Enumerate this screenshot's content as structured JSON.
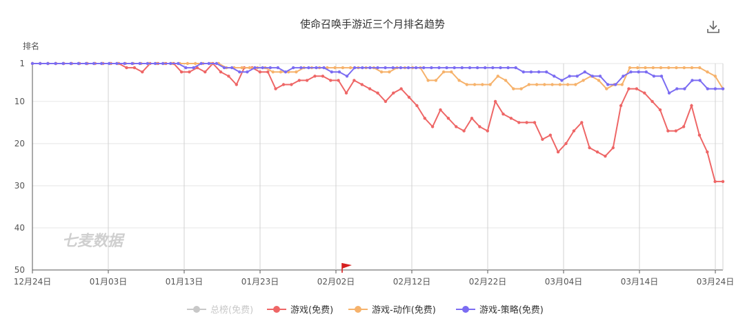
{
  "chart_data": {
    "type": "line",
    "title": "使命召唤手游近三个月排名趋势",
    "ylabel": "排名",
    "y_inverted": true,
    "ylim": [
      1,
      50
    ],
    "y_ticks": [
      1,
      10,
      20,
      30,
      40,
      50
    ],
    "x_tick_labels": [
      "12月24日",
      "01月03日",
      "01月13日",
      "01月23日",
      "02月02日",
      "02月12日",
      "02月22日",
      "03月04日",
      "03月14日",
      "03月24日"
    ],
    "watermark": "七麦数据",
    "legend_position": "bottom",
    "series": [
      {
        "name": "总榜(免费)",
        "color": "#c8c8c8",
        "disabled": true,
        "values": []
      },
      {
        "name": "游戏(免费)",
        "color": "#ee6666",
        "values": [
          1,
          1,
          1,
          1,
          1,
          1,
          1,
          1,
          1,
          1,
          1,
          1,
          2,
          2,
          3,
          1,
          1,
          1,
          1,
          3,
          3,
          2,
          3,
          1,
          3,
          4,
          6,
          2,
          2,
          3,
          3,
          7,
          6,
          6,
          5,
          5,
          4,
          4,
          5,
          5,
          8,
          5,
          6,
          7,
          8,
          10,
          8,
          7,
          9,
          11,
          14,
          16,
          12,
          14,
          16,
          17,
          14,
          16,
          17,
          10,
          13,
          14,
          15,
          15,
          15,
          19,
          18,
          22,
          20,
          17,
          15,
          21,
          22,
          23,
          21,
          11,
          7,
          7,
          8,
          10,
          12,
          17,
          17,
          16,
          11,
          18,
          22,
          29,
          29
        ]
      },
      {
        "name": "游戏-动作(免费)",
        "color": "#f6b26b",
        "values": [
          1,
          1,
          1,
          1,
          1,
          1,
          1,
          1,
          1,
          1,
          1,
          1,
          1,
          1,
          1,
          1,
          1,
          1,
          1,
          1,
          1,
          1,
          1,
          1,
          1,
          2,
          2,
          2,
          2,
          2,
          2,
          3,
          3,
          3,
          3,
          2,
          2,
          2,
          2,
          2,
          2,
          2,
          2,
          2,
          2,
          3,
          3,
          2,
          2,
          2,
          2,
          5,
          5,
          3,
          3,
          5,
          6,
          6,
          6,
          6,
          4,
          5,
          7,
          7,
          6,
          6,
          6,
          6,
          6,
          6,
          6,
          5,
          4,
          5,
          7,
          6,
          6,
          2,
          2,
          2,
          2,
          2,
          2,
          2,
          2,
          2,
          2,
          3,
          4,
          7
        ]
      },
      {
        "name": "游戏-策略(免费)",
        "color": "#7b6cf2",
        "values": [
          1,
          1,
          1,
          1,
          1,
          1,
          1,
          1,
          1,
          1,
          1,
          1,
          1,
          1,
          1,
          1,
          1,
          1,
          1,
          1,
          2,
          2,
          1,
          1,
          1,
          2,
          2,
          3,
          3,
          2,
          2,
          2,
          2,
          3,
          2,
          2,
          2,
          2,
          2,
          3,
          3,
          4,
          2,
          2,
          2,
          2,
          2,
          2,
          2,
          2,
          2,
          2,
          2,
          2,
          2,
          2,
          2,
          2,
          2,
          2,
          2,
          2,
          2,
          2,
          3,
          3,
          3,
          3,
          4,
          5,
          4,
          4,
          3,
          4,
          4,
          6,
          6,
          4,
          3,
          3,
          3,
          4,
          4,
          8,
          7,
          7,
          5,
          5,
          7,
          7,
          7
        ]
      }
    ]
  }
}
